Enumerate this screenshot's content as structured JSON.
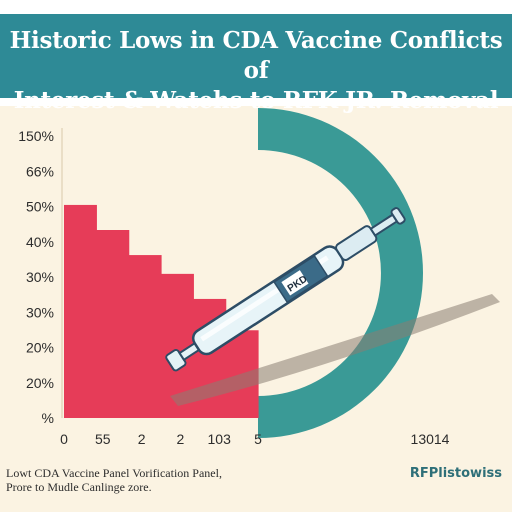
{
  "title_lines": [
    "Historic Lows in CDA Vaccine Conflicts of",
    "Interest & Watehs to RFK JR. Removal"
  ],
  "chart_data": {
    "type": "bar",
    "title": "Historic Lows in CDA Vaccine Conflicts of Interest & Watehs to RFK JR. Removal",
    "y_ticks": [
      "150%",
      "66%",
      "50%",
      "40%",
      "30%",
      "30%",
      "20%",
      "20%",
      "%"
    ],
    "x_ticks": [
      "0",
      "55",
      "2",
      "2",
      "103",
      "5"
    ],
    "x_ticks_right": [
      "13014"
    ],
    "values": [
      34,
      30,
      26,
      23,
      19,
      14
    ],
    "ylim": [
      0,
      45
    ],
    "colors": {
      "bars": "#e63c58",
      "ring": "#3a9a96",
      "title_band": "#2e8a96",
      "background": "#fbf3e2"
    }
  },
  "illustration": {
    "icon": "syringe-icon",
    "label": "PKD"
  },
  "footnote_lines": [
    "Lowt CDA Vaccine Panel Vorification Panel,",
    "Prore to Mudle Canlinge zore."
  ],
  "source": "RFPlistowiss"
}
